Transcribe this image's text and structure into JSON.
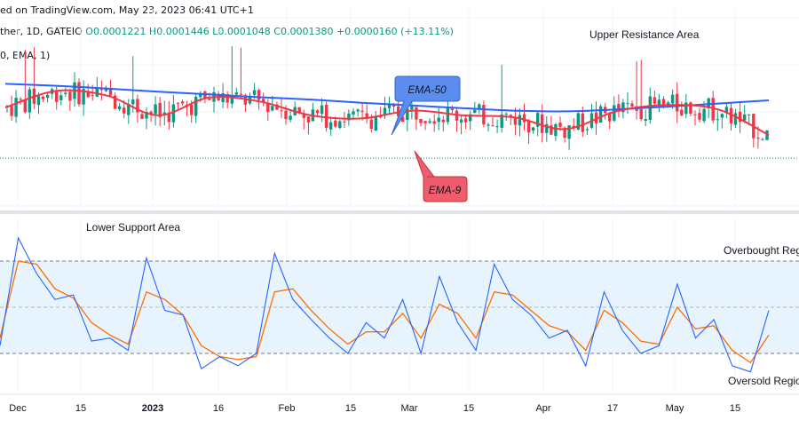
{
  "header": {
    "published": "ed on TradingView.com, May 23, 2023 06:41 UTC+1",
    "symbol_prefix": "ther, 1D, GATEIO",
    "ohlc": "O0.0001221  H0.0001446  L0.0001048  C0.0001380  +0.0000160 (+13.11%)",
    "ema_legend": "0, EMA, 1)"
  },
  "annotations": {
    "upper_resistance": "Upper Resistance Area",
    "lower_support": "Lower Support Area",
    "overbought": "Overbought Region",
    "oversold": "Oversold Region",
    "ema50_label": "EMA-50",
    "ema9_label": "EMA-9"
  },
  "x_axis": {
    "labels": [
      "Dec",
      "15",
      "2023",
      "16",
      "Feb",
      "15",
      "Mar",
      "15",
      "Apr",
      "17",
      "May",
      "15"
    ]
  },
  "colors": {
    "ema50": "#2962ff",
    "ema9": "#f23645",
    "bull": "#089981",
    "bear": "#f23645",
    "stoch_k": "#2962ff",
    "stoch_d": "#ff6d00",
    "band_fill": "#e3f2fd",
    "label_blue": "#5b8def",
    "label_red": "#ef5c6b"
  },
  "chart_data": [
    {
      "type": "candlestick",
      "title": "",
      "series": [
        {
          "name": "EMA-50",
          "values": [
            0.000137,
            0.0001365,
            0.0001358,
            0.000135,
            0.0001343,
            0.0001336,
            0.000133,
            0.0001322,
            0.0001315,
            0.0001308,
            0.0001302,
            0.00013,
            0.0001305,
            0.0001312,
            0.000132,
            0.0001328
          ]
        },
        {
          "name": "EMA-9",
          "values": [
            0.000131,
            0.0001352,
            0.000134,
            0.000129,
            0.0001335,
            0.0001325,
            0.000129,
            0.0001282,
            0.0001302,
            0.000129,
            0.0001285,
            0.0001255,
            0.00013,
            0.0001316,
            0.0001305,
            0.000124
          ]
        }
      ]
    },
    {
      "type": "line",
      "title": "",
      "series": [
        {
          "name": "",
          "values": [
            25,
            95,
            72,
            55,
            58,
            28,
            30,
            22,
            82,
            48,
            45,
            10,
            18,
            12,
            20,
            85,
            55,
            42,
            30,
            20,
            40,
            30,
            55,
            20,
            70,
            40,
            22,
            78,
            55,
            45,
            30,
            35,
            12,
            60,
            35,
            20,
            25,
            65,
            30,
            42,
            12,
            8,
            48
          ]
        },
        {
          "name": "",
          "values": [
            30,
            80,
            78,
            62,
            56,
            40,
            32,
            26,
            60,
            55,
            45,
            25,
            18,
            16,
            18,
            60,
            62,
            48,
            36,
            26,
            34,
            34,
            46,
            30,
            52,
            46,
            30,
            60,
            58,
            48,
            38,
            34,
            22,
            48,
            40,
            28,
            26,
            50,
            36,
            38,
            22,
            14,
            32
          ]
        }
      ],
      "bands": [
        80,
        50,
        20
      ]
    }
  ]
}
